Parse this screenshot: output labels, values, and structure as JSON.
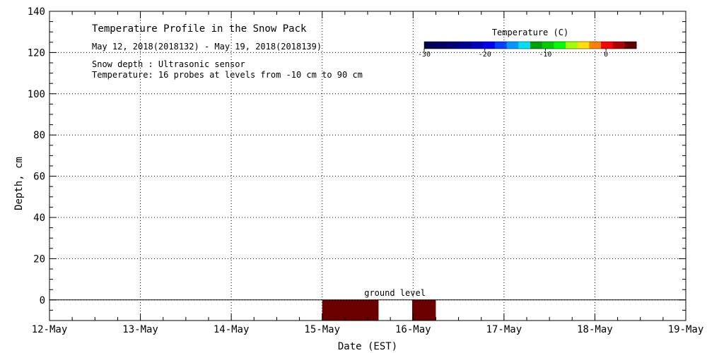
{
  "chart_data": {
    "type": "heatmap",
    "title": "Temperature Profile in the Snow Pack",
    "subtitle": "May 12, 2018(2018132) - May 19, 2018(2018139)",
    "notes": [
      "Snow depth : Ultrasonic sensor",
      "Temperature: 16 probes at levels from -10 cm to 90 cm"
    ],
    "xlabel": "Date (EST)",
    "ylabel": "Depth, cm",
    "x_ticks": [
      "12-May",
      "13-May",
      "14-May",
      "15-May",
      "16-May",
      "17-May",
      "18-May",
      "19-May"
    ],
    "xlim_days": [
      0,
      7
    ],
    "ylim": [
      -10,
      140
    ],
    "y_ticks": [
      0,
      20,
      40,
      60,
      80,
      100,
      120,
      140
    ],
    "grid": true,
    "annotation": "ground level",
    "ground_level": 0,
    "cells": [
      {
        "x_start_days": 3.0,
        "x_end_days": 3.62,
        "y_start": -10,
        "y_end": 0,
        "color": "#6b0000"
      },
      {
        "x_start_days": 3.99,
        "x_end_days": 4.25,
        "y_start": -10,
        "y_end": 0,
        "color": "#6b0000"
      }
    ],
    "colorbar": {
      "label": "Temperature (C)",
      "range": [
        -30,
        5
      ],
      "ticks": [
        -30,
        -20,
        -10,
        0
      ],
      "colors": [
        "#00004e",
        "#000065",
        "#00007c",
        "#000097",
        "#0000c0",
        "#0000f0",
        "#0040ff",
        "#0099ff",
        "#00e0ff",
        "#00a000",
        "#00cc00",
        "#00ff00",
        "#a0ff00",
        "#ffe000",
        "#ff8000",
        "#ff0000",
        "#b00000",
        "#600000"
      ]
    }
  }
}
